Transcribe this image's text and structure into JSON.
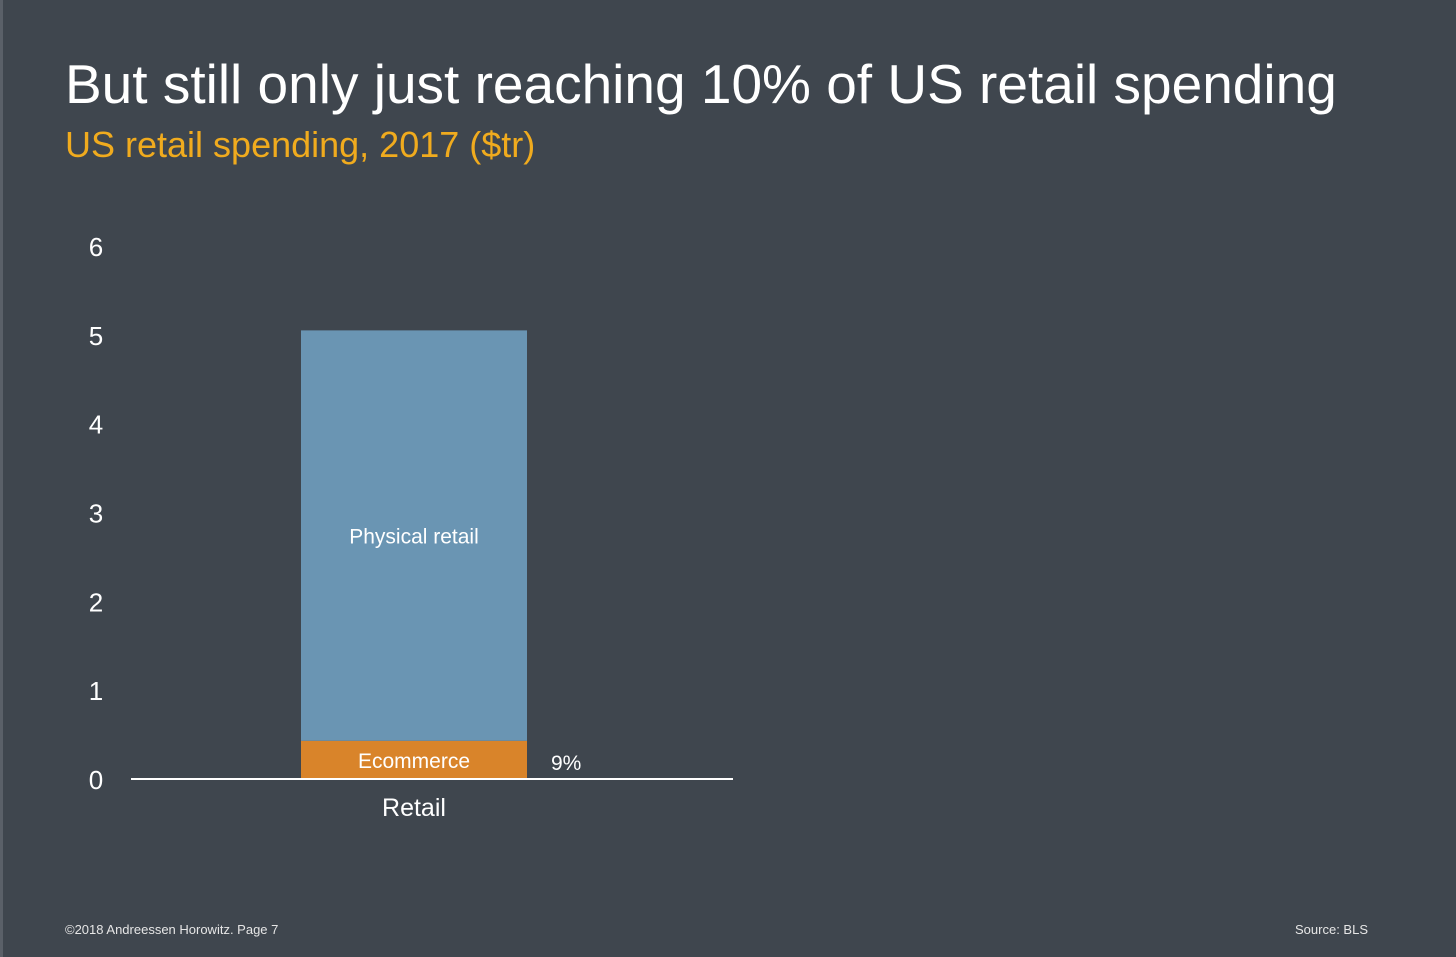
{
  "slide": {
    "title": "But still only just reaching 10% of US retail spending",
    "subtitle": "US retail spending, 2017 ($tr)",
    "footer_left": "©2018 Andreessen Horowitz. Page 7",
    "footer_right": "Source: BLS"
  },
  "colors": {
    "background": "#3f464e",
    "subtitle": "#f0ab1e",
    "physical_retail": "#6a95b3",
    "ecommerce": "#d9842a",
    "text": "#ffffff"
  },
  "chart_data": {
    "type": "bar",
    "stacked": true,
    "categories": [
      "Retail"
    ],
    "series": [
      {
        "name": "Ecommerce",
        "values": [
          0.43
        ],
        "color": "#d9842a"
      },
      {
        "name": "Physical retail",
        "values": [
          4.62
        ],
        "color": "#6a95b3"
      }
    ],
    "annotations": [
      {
        "category": "Retail",
        "text": "9%"
      }
    ],
    "yticks": [
      "0",
      "1",
      "2",
      "3",
      "4",
      "5",
      "6"
    ],
    "ylim": [
      0,
      6
    ],
    "grid": false,
    "legend": "none"
  }
}
